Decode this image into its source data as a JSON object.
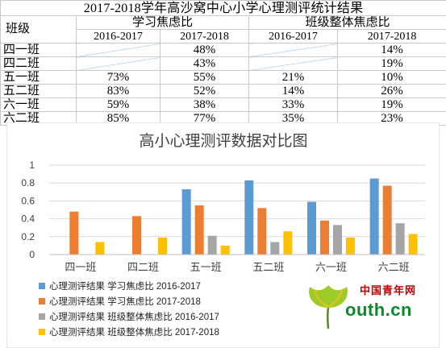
{
  "table": {
    "title": "2017-2018学年高沙窝中心小学心理测评统计结果",
    "class_header": "班级",
    "group1": "学习焦虑比",
    "group2": "班级整体焦虑比",
    "years": [
      "2016-2017",
      "2017-2018",
      "2016-2017",
      "2017-2018"
    ],
    "rows": [
      {
        "name": "四一班",
        "a": "",
        "b": "48%",
        "c": "",
        "d": "14%",
        "a_slash": true,
        "c_slash": true
      },
      {
        "name": "四二班",
        "a": "",
        "b": "43%",
        "c": "",
        "d": "19%",
        "a_slash": true,
        "c_slash": true
      },
      {
        "name": "五一班",
        "a": "73%",
        "b": "55%",
        "c": "21%",
        "d": "10%"
      },
      {
        "name": "五二班",
        "a": "83%",
        "b": "52%",
        "c": "14%",
        "d": "26%"
      },
      {
        "name": "六一班",
        "a": "59%",
        "b": "38%",
        "c": "33%",
        "d": "19%"
      },
      {
        "name": "六二班",
        "a": "85%",
        "b": "77%",
        "c": "35%",
        "d": "23%"
      }
    ]
  },
  "chart_data": {
    "type": "bar",
    "title": "高小心理测评数据对比图",
    "categories": [
      "四一班",
      "四二班",
      "五一班",
      "五二班",
      "六一班",
      "六二班"
    ],
    "y_ticks": [
      "0",
      "0.2",
      "0.4",
      "0.6",
      "0.8",
      "1"
    ],
    "ylim": [
      0,
      1
    ],
    "grid": true,
    "legend_position": "bottom-left",
    "series": [
      {
        "name": "心理测评结果 学习焦虑比 2016-2017",
        "color": "#5b9bd5",
        "values": [
          null,
          null,
          0.73,
          0.83,
          0.59,
          0.85
        ]
      },
      {
        "name": "心理测评结果 学习焦虑比 2017-2018",
        "color": "#ed7d31",
        "values": [
          0.48,
          0.43,
          0.55,
          0.52,
          0.38,
          0.77
        ]
      },
      {
        "name": "心理测评结果 班级整体焦虑比 2016-2017",
        "color": "#a5a5a5",
        "values": [
          null,
          null,
          0.21,
          0.14,
          0.33,
          0.35
        ]
      },
      {
        "name": "心理测评结果 班级整体焦虑比 2017-2018",
        "color": "#ffc000",
        "values": [
          0.14,
          0.19,
          0.1,
          0.26,
          0.19,
          0.23
        ]
      }
    ]
  },
  "watermark": {
    "site_cn": "中国青年网",
    "site_url": "outh.cn"
  }
}
